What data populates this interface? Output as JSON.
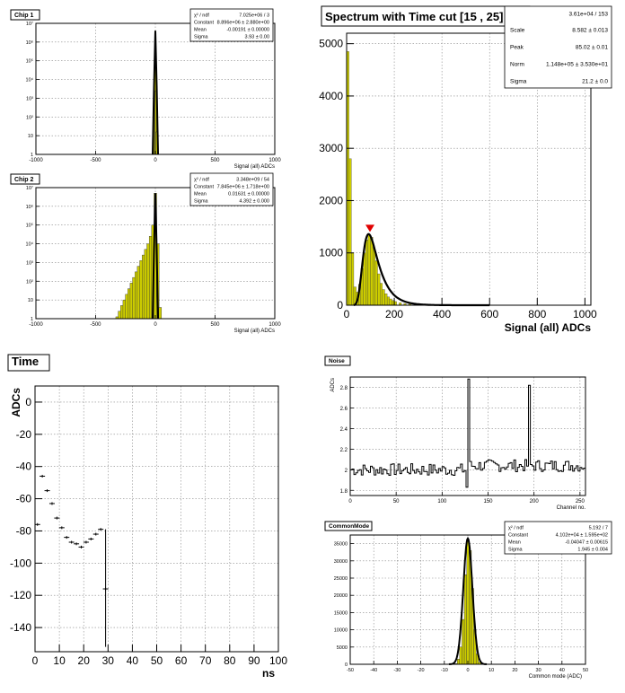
{
  "chart_data": [
    {
      "id": "chip1",
      "type": "histogram",
      "title": "Chip 1",
      "xlabel": "Signal (all) ADCs",
      "xlim": [
        -1000,
        1000
      ],
      "ylog": true,
      "ylim_log": [
        0,
        7
      ],
      "xticks": [
        "-1000",
        "-500",
        "0",
        "500",
        "1000"
      ],
      "yticks": [
        "1",
        "10",
        "10²",
        "10³",
        "10⁴",
        "10⁵",
        "10⁶",
        "10⁷"
      ],
      "grid": true,
      "fill_color": "#cccc00",
      "bins": [
        {
          "x": -10,
          "log": 1.0
        },
        {
          "x": -5,
          "log": 3.6
        },
        {
          "x": 0,
          "log": 6.6
        },
        {
          "x": 5,
          "log": 3.4
        },
        {
          "x": 10,
          "log": 1.2
        }
      ],
      "stats": [
        {
          "label": "χ² / ndf",
          "value": "7.025e+06 / 3"
        },
        {
          "label": "Constant",
          "value": "8.896e+06 ± 2.880e+00"
        },
        {
          "label": "Mean",
          "value": "-0.00191 ± 0.00000"
        },
        {
          "label": "Sigma",
          "value": "3.93 ± 0.00"
        }
      ]
    },
    {
      "id": "chip2",
      "type": "histogram",
      "title": "Chip 2",
      "xlabel": "Signal (all) ADCs",
      "xlim": [
        -1000,
        1000
      ],
      "ylog": true,
      "ylim_log": [
        0,
        7
      ],
      "xticks": [
        "-1000",
        "-500",
        "0",
        "500",
        "1000"
      ],
      "yticks": [
        "1",
        "10",
        "10²",
        "10³",
        "10⁴",
        "10⁵",
        "10⁶",
        "10⁷"
      ],
      "grid": true,
      "fill_color": "#cccc00",
      "bins": [
        {
          "x": -320,
          "log": 0.1
        },
        {
          "x": -300,
          "log": 0.4
        },
        {
          "x": -280,
          "log": 0.7
        },
        {
          "x": -260,
          "log": 1.0
        },
        {
          "x": -240,
          "log": 1.3
        },
        {
          "x": -220,
          "log": 1.6
        },
        {
          "x": -200,
          "log": 1.9
        },
        {
          "x": -180,
          "log": 2.2
        },
        {
          "x": -160,
          "log": 2.5
        },
        {
          "x": -140,
          "log": 2.8
        },
        {
          "x": -120,
          "log": 3.1
        },
        {
          "x": -100,
          "log": 3.4
        },
        {
          "x": -80,
          "log": 3.7
        },
        {
          "x": -60,
          "log": 4.0
        },
        {
          "x": -40,
          "log": 4.4
        },
        {
          "x": -20,
          "log": 5.0
        },
        {
          "x": 0,
          "log": 6.7
        },
        {
          "x": 20,
          "log": 4.0
        },
        {
          "x": 40,
          "log": 0.6
        }
      ],
      "stats": [
        {
          "label": "χ² / ndf",
          "value": "3.348e+09 / 54"
        },
        {
          "label": "Constant",
          "value": "7.845e+06 ± 1.718e+00"
        },
        {
          "label": "Mean",
          "value": "0.01631 ± 0.00000"
        },
        {
          "label": "Sigma",
          "value": "4.392 ± 0.000"
        }
      ]
    },
    {
      "id": "spectrum",
      "type": "histogram",
      "title": "Spectrum with Time cut [15 , 25]",
      "xlabel": "Signal (all) ADCs",
      "xlim": [
        0,
        1025
      ],
      "ylim": [
        0,
        5200
      ],
      "xticks": [
        0,
        200,
        400,
        600,
        800,
        1000
      ],
      "yticks": [
        0,
        1000,
        2000,
        3000,
        4000,
        5000
      ],
      "grid": true,
      "fill_color": "#cccc00",
      "bins": [
        {
          "x": 0,
          "y": 4850
        },
        {
          "x": 10,
          "y": 2800
        },
        {
          "x": 20,
          "y": 1000
        },
        {
          "x": 30,
          "y": 350
        },
        {
          "x": 40,
          "y": 250
        },
        {
          "x": 50,
          "y": 400
        },
        {
          "x": 60,
          "y": 700
        },
        {
          "x": 70,
          "y": 1000
        },
        {
          "x": 80,
          "y": 1250
        },
        {
          "x": 90,
          "y": 1350
        },
        {
          "x": 100,
          "y": 1300
        },
        {
          "x": 110,
          "y": 1100
        },
        {
          "x": 120,
          "y": 850
        },
        {
          "x": 130,
          "y": 600
        },
        {
          "x": 140,
          "y": 420
        },
        {
          "x": 150,
          "y": 300
        },
        {
          "x": 160,
          "y": 220
        },
        {
          "x": 170,
          "y": 160
        },
        {
          "x": 180,
          "y": 120
        },
        {
          "x": 190,
          "y": 90
        },
        {
          "x": 200,
          "y": 70
        },
        {
          "x": 220,
          "y": 45
        },
        {
          "x": 240,
          "y": 30
        },
        {
          "x": 260,
          "y": 20
        },
        {
          "x": 300,
          "y": 10
        },
        {
          "x": 350,
          "y": 5
        }
      ],
      "peak_marker": {
        "x": 98,
        "y": 1400
      },
      "stats": [
        {
          "label": "",
          "value": "3.61e+04 / 153"
        },
        {
          "label": "Scale",
          "value": "8.582 ± 0.013"
        },
        {
          "label": "Peak",
          "value": "85.02 ± 0.01"
        },
        {
          "label": "Norm",
          "value": "1.148e+05 ± 3.530e+01"
        },
        {
          "label": "Sigma",
          "value": "21.2 ± 0.0"
        }
      ]
    },
    {
      "id": "time",
      "type": "scatter",
      "title": "Time",
      "xlabel": "ns",
      "ylabel": "ADCs",
      "xlim": [
        0,
        100
      ],
      "ylim": [
        -155,
        10
      ],
      "xticks": [
        0,
        10,
        20,
        30,
        40,
        50,
        60,
        70,
        80,
        90,
        100
      ],
      "yticks": [
        0,
        -20,
        -40,
        -60,
        -80,
        -100,
        -120,
        -140
      ],
      "grid": true,
      "points": [
        {
          "x": 1,
          "y": -76
        },
        {
          "x": 3,
          "y": -46
        },
        {
          "x": 5,
          "y": -55
        },
        {
          "x": 7,
          "y": -63
        },
        {
          "x": 9,
          "y": -72
        },
        {
          "x": 11,
          "y": -78
        },
        {
          "x": 13,
          "y": -84
        },
        {
          "x": 15,
          "y": -87
        },
        {
          "x": 17,
          "y": -88
        },
        {
          "x": 19,
          "y": -90
        },
        {
          "x": 21,
          "y": -87
        },
        {
          "x": 23,
          "y": -85
        },
        {
          "x": 25,
          "y": -82
        },
        {
          "x": 27,
          "y": -79
        },
        {
          "x": 29,
          "y": -116
        }
      ]
    },
    {
      "id": "noise",
      "type": "line",
      "title": "Noise",
      "xlabel": "Channel no.",
      "ylabel": "ADCs",
      "xlim": [
        0,
        256
      ],
      "ylim": [
        1.75,
        2.9
      ],
      "xticks": [
        0,
        50,
        100,
        150,
        200,
        250
      ],
      "yticks": [
        "1.8",
        "2",
        "2.2",
        "2.4",
        "2.6",
        "2.8"
      ],
      "grid": true,
      "baseline": 2.0,
      "spikes": [
        {
          "x": 128,
          "y": 2.88
        },
        {
          "x": 194,
          "y": 2.82
        }
      ]
    },
    {
      "id": "commonmode",
      "type": "histogram",
      "title": "CommonMode",
      "xlabel": "Common mode (ADC)",
      "xlim": [
        -50,
        50
      ],
      "ylim": [
        0,
        37500
      ],
      "xticks": [
        -50,
        -40,
        -30,
        -20,
        -10,
        0,
        10,
        20,
        30,
        40,
        50
      ],
      "yticks": [
        0,
        5000,
        10000,
        15000,
        20000,
        25000,
        30000,
        35000
      ],
      "grid": true,
      "fill_color": "#cccc00",
      "bins": [
        {
          "x": -5,
          "y": 200
        },
        {
          "x": -4,
          "y": 1500
        },
        {
          "x": -3,
          "y": 5000
        },
        {
          "x": -2,
          "y": 13000
        },
        {
          "x": -1,
          "y": 26000
        },
        {
          "x": 0,
          "y": 36000
        },
        {
          "x": 1,
          "y": 33000
        },
        {
          "x": 2,
          "y": 22000
        },
        {
          "x": 3,
          "y": 10000
        },
        {
          "x": 4,
          "y": 3000
        },
        {
          "x": 5,
          "y": 600
        }
      ],
      "stats": [
        {
          "label": "χ² / ndf",
          "value": "5.192 / 7"
        },
        {
          "label": "Constant",
          "value": "4.102e+04 ± 1.595e+02"
        },
        {
          "label": "Mean",
          "value": "-0.04047 ± 0.00615"
        },
        {
          "label": "Sigma",
          "value": "1.945 ± 0.004"
        }
      ]
    }
  ]
}
